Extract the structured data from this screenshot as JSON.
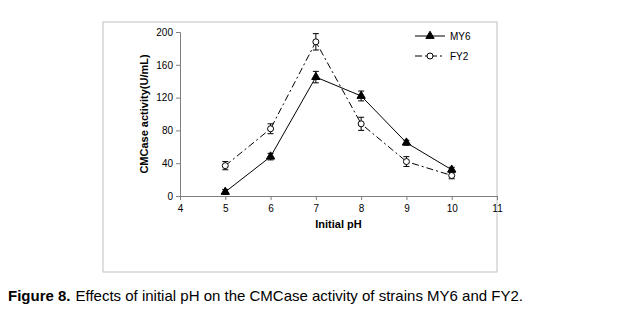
{
  "chart_data": {
    "type": "line",
    "title": "Figure 8.",
    "subtitle": "Effects of initial pH on the CMCase activity of strains MY6 and FY2.",
    "x_label": "Initial pH",
    "y_label": "CMCase activity(U/mL)",
    "x": [
      5,
      6,
      7,
      8,
      9,
      10
    ],
    "series": [
      {
        "name": "MY6",
        "color": "#000000",
        "marker": "triangle",
        "line_style": "solid",
        "values": [
          5,
          48,
          145,
          122,
          65,
          32
        ],
        "errors": [
          3,
          4,
          7,
          6,
          3,
          3
        ]
      },
      {
        "name": "FY2",
        "color": "#000000",
        "marker": "circle-open",
        "line_style": "dashdot",
        "values": [
          37,
          82,
          188,
          88,
          42,
          25
        ],
        "errors": [
          5,
          6,
          10,
          8,
          6,
          4
        ]
      }
    ],
    "xlim": [
      4,
      11
    ],
    "xticks": [
      4,
      5,
      6,
      7,
      8,
      9,
      10,
      11
    ],
    "ylim": [
      0,
      200
    ],
    "yticks": [
      0,
      40,
      80,
      120,
      160,
      200
    ],
    "grid": false,
    "legend": "upper-right"
  }
}
